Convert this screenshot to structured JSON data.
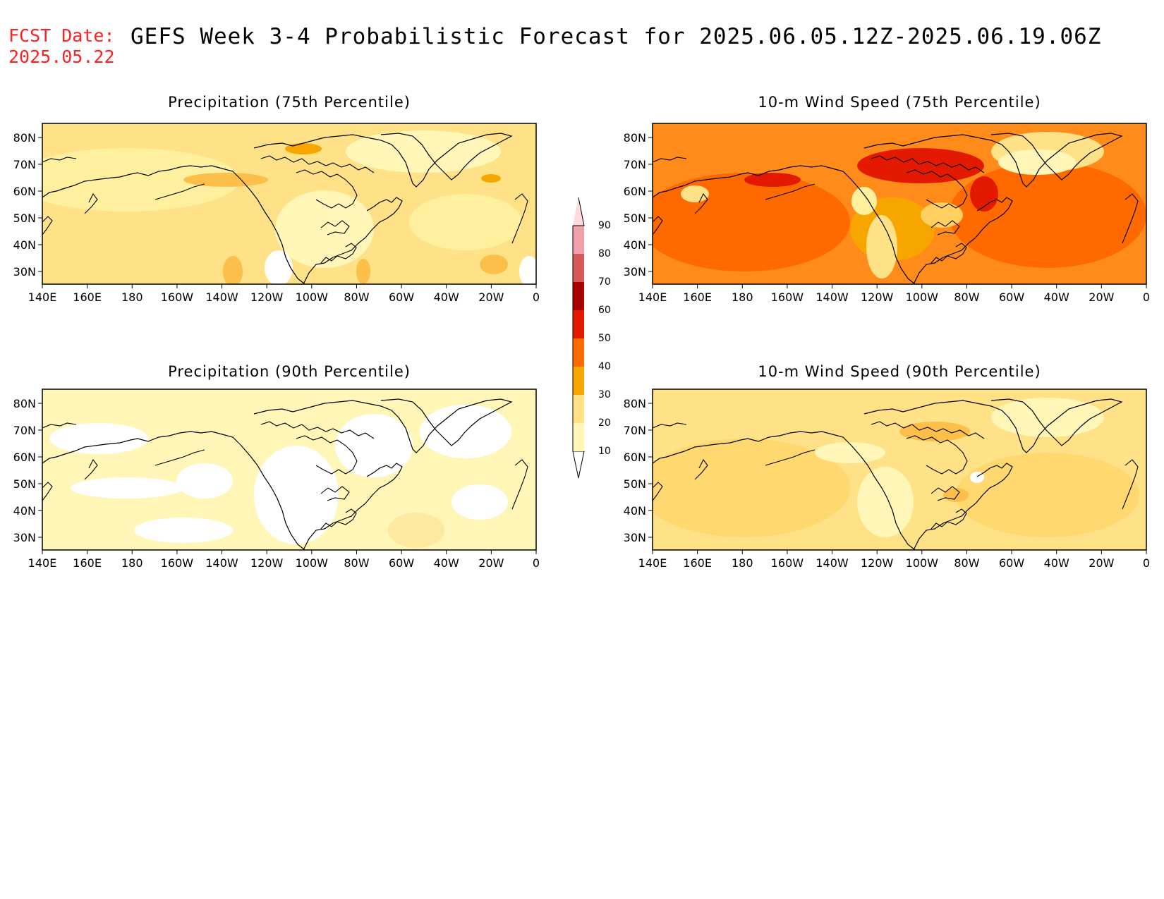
{
  "header": {
    "fcst_label": "FCST Date:",
    "fcst_date": "2025.05.22",
    "title": "GEFS Week 3-4 Probabilistic Forecast for 2025.06.05.12Z-2025.06.19.06Z"
  },
  "panels": [
    {
      "id": "precip-75",
      "title": "Precipitation (75th Percentile)"
    },
    {
      "id": "wind-75",
      "title": "10-m Wind Speed (75th Percentile)"
    },
    {
      "id": "precip-90",
      "title": "Precipitation (90th Percentile)"
    },
    {
      "id": "wind-90",
      "title": "10-m Wind Speed (90th Percentile)"
    }
  ],
  "axes": {
    "lat_ticks": [
      "80N",
      "70N",
      "60N",
      "50N",
      "40N",
      "30N"
    ],
    "lon_ticks": [
      "140E",
      "160E",
      "180",
      "160W",
      "140W",
      "120W",
      "100W",
      "80W",
      "60W",
      "40W",
      "20W",
      "0"
    ]
  },
  "colorbar": {
    "levels": [
      "10",
      "20",
      "30",
      "40",
      "50",
      "60",
      "70",
      "80",
      "90"
    ],
    "colors": [
      "#fff6b8",
      "#ffe187",
      "#f7a600",
      "#ff6a00",
      "#e31a00",
      "#a80000",
      "#d65a5a",
      "#f0a0a8",
      "#ffd9dd"
    ]
  }
}
